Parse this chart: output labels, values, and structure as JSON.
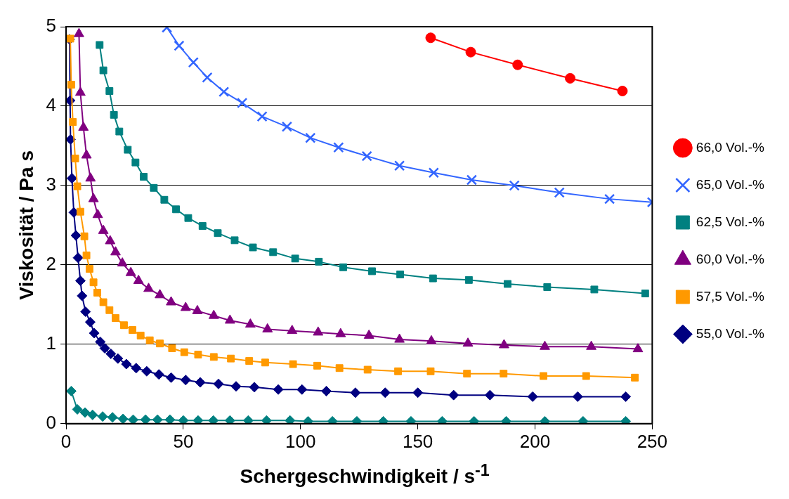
{
  "chart_data": {
    "type": "line",
    "xlabel": "Schergeschwindigkeit / s$^{-1}$",
    "ylabel": "Viskosität / Pa s",
    "xlim": [
      0,
      250
    ],
    "xticks": [
      0,
      50,
      100,
      150,
      200,
      250
    ],
    "ylim": [
      0,
      5
    ],
    "yticks": [
      0,
      1,
      2,
      3,
      4,
      5
    ],
    "grid": "y",
    "legend": "right",
    "series": [
      {
        "name": "66,0 Vol.-%",
        "color": "#ff0000",
        "marker": "circle",
        "x": [
          155.5,
          172.6,
          192.6,
          215,
          237.3
        ],
        "values": [
          4.86,
          4.68,
          4.52,
          4.35,
          4.19
        ]
      },
      {
        "name": "65,0 Vol.-%",
        "color": "#3366ff",
        "marker": "cross",
        "x": [
          43,
          48.2,
          54.3,
          60.2,
          67.3,
          75.1,
          83.6,
          94.2,
          104.2,
          116.2,
          128.3,
          142.2,
          156.8,
          173,
          191.2,
          210.4,
          231.8,
          250
        ],
        "values": [
          4.99,
          4.76,
          4.55,
          4.36,
          4.18,
          4.04,
          3.87,
          3.74,
          3.6,
          3.48,
          3.37,
          3.25,
          3.16,
          3.07,
          3,
          2.91,
          2.83,
          2.79
        ]
      },
      {
        "name": "62,5 Vol.-%",
        "color": "#008080",
        "marker": "square",
        "x": [
          14.3,
          15.9,
          18.5,
          20.4,
          22.7,
          26.3,
          29.6,
          33.1,
          37.4,
          41.9,
          46.9,
          52.1,
          58.2,
          64.7,
          71.9,
          79.7,
          88.3,
          97.7,
          107.8,
          118.2,
          130.5,
          142.5,
          156.5,
          171.8,
          188.3,
          205.2,
          225.3,
          247
        ],
        "values": [
          4.77,
          4.45,
          4.19,
          3.89,
          3.68,
          3.45,
          3.29,
          3.11,
          2.97,
          2.82,
          2.7,
          2.59,
          2.49,
          2.4,
          2.31,
          2.22,
          2.16,
          2.08,
          2.04,
          1.97,
          1.92,
          1.88,
          1.83,
          1.81,
          1.76,
          1.72,
          1.69,
          1.64
        ]
      },
      {
        "name": "60,0 Vol.-%",
        "color": "#800080",
        "marker": "triangle",
        "x": [
          5.5,
          6.1,
          7.4,
          8.7,
          10.4,
          11.7,
          13.5,
          15.9,
          18.8,
          21.1,
          24,
          27.6,
          30.9,
          35.2,
          40,
          44.8,
          51,
          56,
          63,
          69.9,
          78.6,
          85.9,
          96.4,
          107.5,
          117.1,
          129.2,
          142.2,
          155.8,
          171.4,
          186.8,
          204.2,
          224,
          243.9
        ],
        "values": [
          4.91,
          4.17,
          3.73,
          3.38,
          3.09,
          2.83,
          2.63,
          2.43,
          2.3,
          2.16,
          2.02,
          1.9,
          1.8,
          1.7,
          1.62,
          1.53,
          1.46,
          1.42,
          1.36,
          1.3,
          1.25,
          1.19,
          1.17,
          1.15,
          1.13,
          1.11,
          1.06,
          1.04,
          1.01,
          0.99,
          0.97,
          0.97,
          0.94
        ]
      },
      {
        "name": "57,5 Vol.-%",
        "color": "#ff9900",
        "marker": "square",
        "x": [
          1.8,
          2.2,
          2.9,
          3.9,
          4.8,
          6.1,
          7.8,
          8.7,
          10,
          11.7,
          13.3,
          15.9,
          18.5,
          21.1,
          24.7,
          28.3,
          31.8,
          35.7,
          40,
          45.2,
          50.4,
          56.3,
          63,
          70.3,
          78.1,
          84.9,
          96.8,
          107.1,
          116.6,
          128.6,
          141.6,
          155.5,
          171,
          186.6,
          203.6,
          221.8,
          242.6
        ],
        "values": [
          4.85,
          4.27,
          3.8,
          3.34,
          2.99,
          2.67,
          2.36,
          2.12,
          1.95,
          1.78,
          1.65,
          1.53,
          1.43,
          1.33,
          1.24,
          1.18,
          1.11,
          1.05,
          1.01,
          0.95,
          0.9,
          0.87,
          0.84,
          0.82,
          0.79,
          0.77,
          0.75,
          0.73,
          0.7,
          0.68,
          0.66,
          0.66,
          0.63,
          0.63,
          0.6,
          0.6,
          0.58
        ]
      },
      {
        "name": "55,0 Vol.-%",
        "color": "#000080",
        "marker": "diamond",
        "x": [
          1.5,
          1.7,
          1.9,
          2.5,
          3.3,
          4.2,
          5.1,
          6.1,
          6.8,
          8.3,
          10.3,
          12,
          14.6,
          16.5,
          19.1,
          22.1,
          25.7,
          29.9,
          34.4,
          39.6,
          44.8,
          51,
          57.2,
          65,
          72.5,
          80.3,
          90.5,
          100.6,
          111,
          123.4,
          136.1,
          150,
          165.3,
          180.8,
          199,
          218.2,
          238.7
        ],
        "values": [
          4.84,
          4.07,
          3.58,
          3.09,
          2.66,
          2.37,
          2.09,
          1.8,
          1.61,
          1.41,
          1.28,
          1.14,
          1.03,
          0.95,
          0.88,
          0.82,
          0.75,
          0.7,
          0.66,
          0.62,
          0.58,
          0.55,
          0.52,
          0.5,
          0.47,
          0.46,
          0.43,
          0.43,
          0.41,
          0.39,
          0.39,
          0.39,
          0.36,
          0.36,
          0.34,
          0.34,
          0.34
        ]
      },
      {
        "color": "#008080",
        "marker": "diamond",
        "x": [
          2.2,
          4.8,
          8.1,
          11.3,
          15.6,
          19.8,
          24.3,
          28.6,
          33.9,
          39,
          44.3,
          50,
          56.3,
          62.8,
          69.9,
          77.7,
          85.5,
          95.5,
          103.2,
          113.6,
          124,
          135.3,
          147.1,
          160.4,
          174,
          187.7,
          204.2,
          220.5,
          238.7
        ],
        "values": [
          0.41,
          0.18,
          0.14,
          0.11,
          0.09,
          0.08,
          0.06,
          0.05,
          0.05,
          0.05,
          0.05,
          0.04,
          0.04,
          0.04,
          0.04,
          0.04,
          0.04,
          0.04,
          0.03,
          0.03,
          0.03,
          0.03,
          0.03,
          0.03,
          0.03,
          0.03,
          0.03,
          0.03,
          0.03
        ]
      }
    ]
  }
}
